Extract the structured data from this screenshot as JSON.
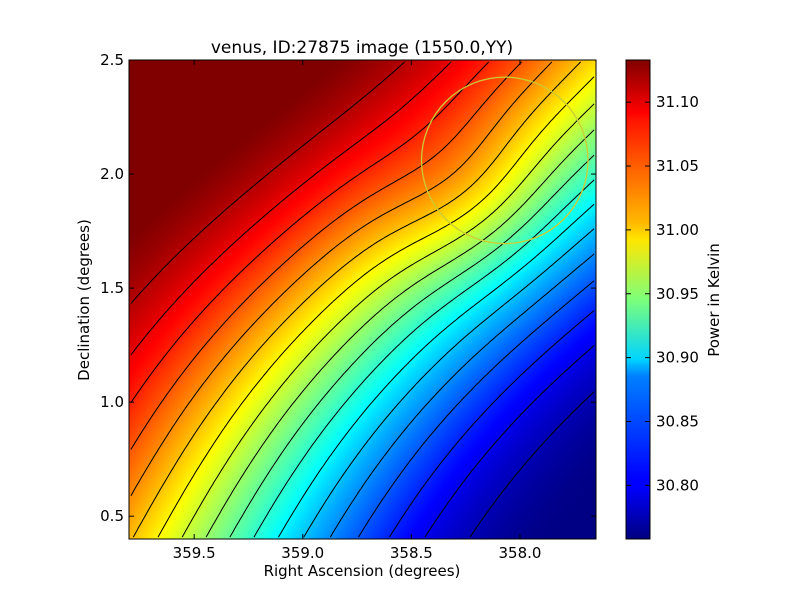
{
  "chart_data": {
    "type": "heatmap",
    "title": "venus, ID:27875 image (1550.0,YY)",
    "xlabel": "Right Ascension (degrees)",
    "ylabel": "Declination (degrees)",
    "colorbar_label": "Power in Kelvin",
    "xlim": [
      359.8,
      357.65
    ],
    "ylim": [
      0.4,
      2.5
    ],
    "x_ticks": [
      359.5,
      359.0,
      358.5,
      358.0
    ],
    "x_tick_labels": [
      "359.5",
      "359.0",
      "358.5",
      "358.0"
    ],
    "y_ticks": [
      0.5,
      1.0,
      1.5,
      2.0,
      2.5
    ],
    "y_tick_labels": [
      "0.5",
      "1.0",
      "1.5",
      "2.0",
      "2.5"
    ],
    "colorbar_range": [
      30.758,
      31.133
    ],
    "colorbar_ticks": [
      30.8,
      30.85,
      30.9,
      30.95,
      31.0,
      31.05,
      31.1
    ],
    "colorbar_tick_labels": [
      "30.80",
      "30.85",
      "30.90",
      "30.95",
      "31.00",
      "31.05",
      "31.10"
    ],
    "colormap": "jet",
    "field_model": {
      "description_units": "Kelvin",
      "peak_ra": 359.7,
      "peak_dec": 2.45,
      "peak_value": 31.14,
      "trough_ra": 357.75,
      "trough_dec": 0.55,
      "trough_value": 30.76
    },
    "contour_count": 18,
    "circle_marker": {
      "center_ra": 358.07,
      "center_dec": 2.06,
      "radius_deg": 0.365,
      "color": "#cccc33"
    }
  }
}
